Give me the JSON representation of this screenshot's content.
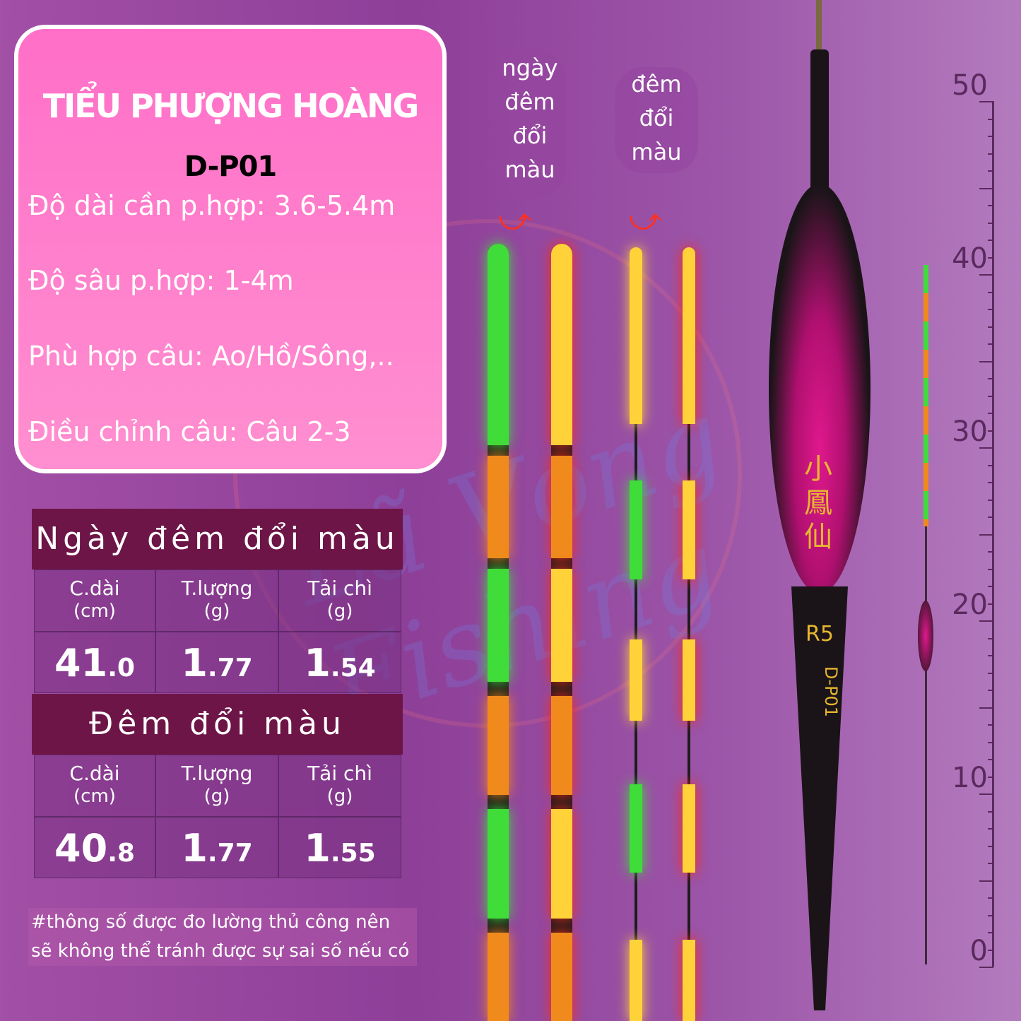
{
  "card": {
    "title": "TIỂU PHƯỢNG HOÀNG",
    "model": "D-P01",
    "specs": [
      "Độ dài cần p.hợp: 3.6-5.4m",
      "Độ sâu p.hợp: 1-4m",
      "Phù hợp câu: Ao/Hồ/Sông,..",
      "Điều chỉnh câu: Câu 2-3"
    ]
  },
  "tables": [
    {
      "title": "Ngày đêm đổi màu",
      "headers": [
        {
          "name": "C.dài",
          "unit": "(cm)"
        },
        {
          "name": "T.lượng",
          "unit": "(g)"
        },
        {
          "name": "Tải chì",
          "unit": "(g)"
        }
      ],
      "values": [
        {
          "int": "41",
          "dec": ".0"
        },
        {
          "int": "1",
          "dec": ".77"
        },
        {
          "int": "1",
          "dec": ".54"
        }
      ]
    },
    {
      "title": "Đêm đổi màu",
      "headers": [
        {
          "name": "C.dài",
          "unit": "(cm)"
        },
        {
          "name": "T.lượng",
          "unit": "(g)"
        },
        {
          "name": "Tải chì",
          "unit": "(g)"
        }
      ],
      "values": [
        {
          "int": "40",
          "dec": ".8"
        },
        {
          "int": "1",
          "dec": ".77"
        },
        {
          "int": "1",
          "dec": ".55"
        }
      ]
    }
  ],
  "note": "#thông số được đo lường thủ công nên sẽ không thể tránh được sự sai số nếu có",
  "labels": {
    "day_night": "ngày đêm đổi màu",
    "night": "đêm đổi màu"
  },
  "float": {
    "brand_chars": "小鳳仙",
    "size": "R5",
    "model": "D-P01"
  },
  "ruler": {
    "ticks": [
      "50",
      "40",
      "30",
      "20",
      "10",
      "0"
    ]
  },
  "watermark": "Lã Vọng Fishing",
  "colors": {
    "card": "#ff7fcc",
    "band": "#6e1548",
    "green": "#3fdc3a",
    "orange": "#f08a1c",
    "red": "#ff2a1a",
    "yellow": "#ffd23a"
  }
}
